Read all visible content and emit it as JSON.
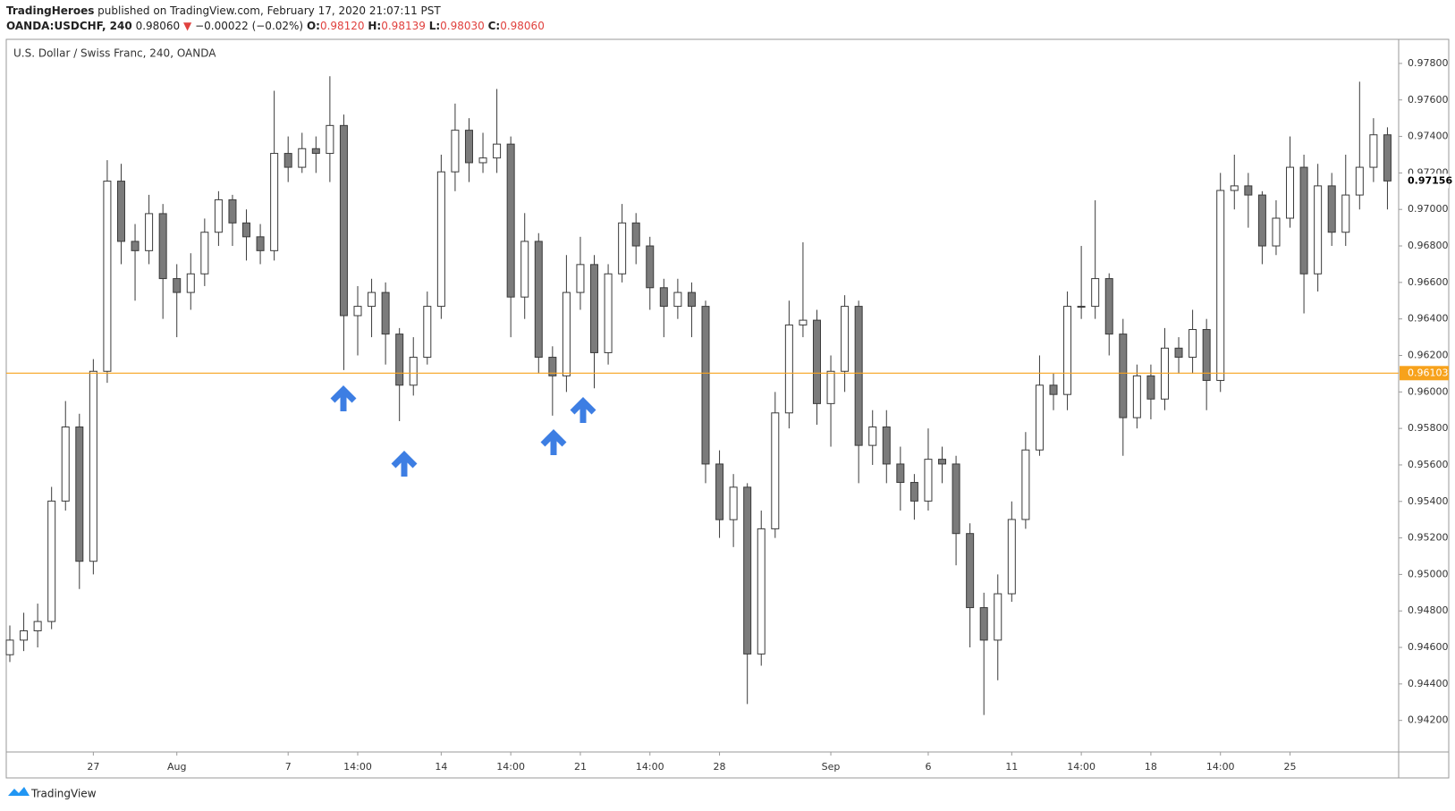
{
  "header": {
    "publisher": "TradingHeroes",
    "published": "published on TradingView.com, February 17, 2020 21:07:11 PST",
    "symbol": "OANDA:USDCHF, 240",
    "last": "0.98060",
    "change": "−0.00022 (−0.02%)",
    "o_label": "O:",
    "open": "0.98120",
    "h_label": "H:",
    "high": "0.98139",
    "l_label": "L:",
    "low": "0.98030",
    "c_label": "C:",
    "close": "0.98060"
  },
  "footer": {
    "brand": "TradingView"
  },
  "chart_data": {
    "type": "candlestick",
    "title": "U.S. Dollar / Swiss Franc, 240, OANDA",
    "up_color": "#ffffff",
    "down_color": "#7b7b7b",
    "edge_color": "#3a3a3a",
    "categories": [
      null,
      null,
      null,
      null,
      null,
      null,
      "27",
      null,
      null,
      null,
      null,
      null,
      "Aug",
      null,
      null,
      null,
      null,
      null,
      null,
      null,
      "7",
      null,
      null,
      null,
      null,
      "14:00",
      null,
      null,
      null,
      null,
      null,
      "14",
      null,
      null,
      null,
      null,
      "14:00",
      null,
      null,
      null,
      null,
      "21",
      null,
      null,
      null,
      null,
      "14:00",
      null,
      null,
      null,
      null,
      "28",
      null,
      null,
      null,
      null,
      null,
      null,
      null,
      "Sep",
      null,
      null,
      null,
      null,
      null,
      null,
      "6",
      null,
      null,
      null,
      null,
      null,
      "11",
      null,
      null,
      null,
      null,
      "14:00",
      null,
      null,
      null,
      null,
      "18",
      null,
      null,
      null,
      null,
      "14:00",
      null,
      null,
      null,
      null,
      "25",
      null,
      null,
      null,
      null,
      null,
      null,
      null
    ],
    "open": [
      0.9456,
      0.9464,
      0.94691,
      0.94742,
      0.95402,
      0.95808,
      0.95072,
      0.96113,
      0.97155,
      0.96825,
      0.96774,
      0.96977,
      0.96621,
      0.96545,
      0.96647,
      0.96875,
      0.97053,
      0.96926,
      0.9685,
      0.96774,
      0.97307,
      0.97231,
      0.97333,
      0.97307,
      0.9746,
      0.96418,
      0.96469,
      0.96545,
      0.96317,
      0.96037,
      0.9619,
      0.96469,
      0.97206,
      0.97434,
      0.97256,
      0.97282,
      0.97358,
      0.9652,
      0.96825,
      0.9619,
      0.96088,
      0.96545,
      0.96698,
      0.96215,
      0.96647,
      0.96926,
      0.968,
      0.96571,
      0.96469,
      0.96545,
      0.96469,
      0.95605,
      0.953,
      0.95478,
      0.94564,
      0.9525,
      0.95885,
      0.96367,
      0.96393,
      0.95936,
      0.96113,
      0.96469,
      0.95707,
      0.95808,
      0.95605,
      0.95504,
      0.95402,
      0.95631,
      0.95605,
      0.95224,
      0.94818,
      0.9464,
      0.94894,
      0.95301,
      0.95682,
      0.96037,
      0.95986,
      0.96469,
      0.96469,
      0.96621,
      0.96317,
      0.95859,
      0.96088,
      0.95961,
      0.9624,
      0.9619,
      0.96342,
      0.96063,
      0.97104,
      0.97129,
      0.97079,
      0.968,
      0.96952,
      0.97231,
      0.96647,
      0.97129,
      0.96875,
      0.97079,
      0.97231,
      0.97409
    ],
    "high": [
      0.9472,
      0.9479,
      0.9484,
      0.9548,
      0.9595,
      0.9588,
      0.9618,
      0.9727,
      0.9725,
      0.9692,
      0.9708,
      0.9703,
      0.967,
      0.9676,
      0.9695,
      0.971,
      0.9708,
      0.97,
      0.9692,
      0.9765,
      0.974,
      0.9742,
      0.974,
      0.9773,
      0.9752,
      0.9658,
      0.9662,
      0.966,
      0.9635,
      0.963,
      0.9655,
      0.973,
      0.9758,
      0.975,
      0.9742,
      0.9766,
      0.974,
      0.9698,
      0.9687,
      0.9625,
      0.9675,
      0.9685,
      0.9675,
      0.967,
      0.9703,
      0.9698,
      0.9685,
      0.9662,
      0.9662,
      0.966,
      0.965,
      0.9568,
      0.9555,
      0.955,
      0.9535,
      0.96,
      0.965,
      0.9682,
      0.9645,
      0.962,
      0.9653,
      0.965,
      0.959,
      0.959,
      0.957,
      0.9555,
      0.958,
      0.957,
      0.9565,
      0.9528,
      0.949,
      0.95,
      0.954,
      0.9578,
      0.962,
      0.961,
      0.9655,
      0.968,
      0.9705,
      0.9665,
      0.964,
      0.9615,
      0.9615,
      0.9635,
      0.963,
      0.9645,
      0.964,
      0.972,
      0.973,
      0.972,
      0.971,
      0.9705,
      0.974,
      0.973,
      0.9725,
      0.972,
      0.973,
      0.977,
      0.975,
      0.9745
    ],
    "low": [
      0.9452,
      0.9458,
      0.946,
      0.947,
      0.9535,
      0.9492,
      0.95,
      0.9605,
      0.967,
      0.965,
      0.967,
      0.964,
      0.963,
      0.9645,
      0.9658,
      0.968,
      0.968,
      0.9672,
      0.967,
      0.9672,
      0.9715,
      0.972,
      0.972,
      0.9715,
      0.9612,
      0.962,
      0.963,
      0.9615,
      0.9584,
      0.9598,
      0.9615,
      0.964,
      0.971,
      0.9715,
      0.972,
      0.972,
      0.963,
      0.964,
      0.961,
      0.9587,
      0.96,
      0.9645,
      0.9602,
      0.9615,
      0.966,
      0.967,
      0.9645,
      0.963,
      0.964,
      0.963,
      0.955,
      0.952,
      0.9515,
      0.9429,
      0.945,
      0.952,
      0.958,
      0.963,
      0.9582,
      0.957,
      0.96,
      0.955,
      0.956,
      0.955,
      0.9535,
      0.953,
      0.9535,
      0.955,
      0.9505,
      0.946,
      0.9423,
      0.9442,
      0.9485,
      0.9525,
      0.9565,
      0.959,
      0.959,
      0.964,
      0.964,
      0.962,
      0.9565,
      0.958,
      0.9585,
      0.959,
      0.961,
      0.961,
      0.959,
      0.96,
      0.97,
      0.969,
      0.967,
      0.9675,
      0.969,
      0.9643,
      0.9655,
      0.968,
      0.968,
      0.97,
      0.9715,
      0.97
    ],
    "close": [
      0.9464,
      0.94691,
      0.94742,
      0.95402,
      0.95808,
      0.95072,
      0.96113,
      0.97155,
      0.96825,
      0.96774,
      0.96977,
      0.96621,
      0.96545,
      0.96647,
      0.96875,
      0.97053,
      0.96926,
      0.9685,
      0.96774,
      0.97307,
      0.97231,
      0.97333,
      0.97307,
      0.9746,
      0.96418,
      0.96469,
      0.96545,
      0.96317,
      0.96037,
      0.9619,
      0.96469,
      0.97206,
      0.97434,
      0.97256,
      0.97282,
      0.97358,
      0.9652,
      0.96825,
      0.9619,
      0.96088,
      0.96545,
      0.96698,
      0.96215,
      0.96647,
      0.96926,
      0.968,
      0.96571,
      0.96469,
      0.96545,
      0.96469,
      0.95605,
      0.953,
      0.95478,
      0.94564,
      0.9525,
      0.95885,
      0.96367,
      0.96393,
      0.95936,
      0.96113,
      0.96469,
      0.95707,
      0.95808,
      0.95605,
      0.95504,
      0.95402,
      0.95631,
      0.95605,
      0.95224,
      0.94818,
      0.9464,
      0.94894,
      0.95301,
      0.95682,
      0.96037,
      0.95986,
      0.96469,
      0.96469,
      0.96621,
      0.96317,
      0.95859,
      0.96088,
      0.95961,
      0.9624,
      0.9619,
      0.96342,
      0.96063,
      0.97104,
      0.97129,
      0.97079,
      0.968,
      0.96952,
      0.97231,
      0.96647,
      0.97129,
      0.96875,
      0.97079,
      0.97231,
      0.97409,
      0.97156
    ],
    "ylim": [
      0.94027,
      0.97932
    ],
    "yticks": [
      {
        "value": 0.942,
        "label": "0.94200"
      },
      {
        "value": 0.944,
        "label": "0.94400"
      },
      {
        "value": 0.946,
        "label": "0.94600"
      },
      {
        "value": 0.948,
        "label": "0.94800"
      },
      {
        "value": 0.95,
        "label": "0.95000"
      },
      {
        "value": 0.952,
        "label": "0.95200"
      },
      {
        "value": 0.954,
        "label": "0.95400"
      },
      {
        "value": 0.956,
        "label": "0.95600"
      },
      {
        "value": 0.958,
        "label": "0.95800"
      },
      {
        "value": 0.96,
        "label": "0.96000"
      },
      {
        "value": 0.962,
        "label": "0.96200"
      },
      {
        "value": 0.964,
        "label": "0.96400"
      },
      {
        "value": 0.966,
        "label": "0.96600"
      },
      {
        "value": 0.968,
        "label": "0.96800"
      },
      {
        "value": 0.97,
        "label": "0.97000"
      },
      {
        "value": 0.972,
        "label": "0.97200"
      },
      {
        "value": 0.974,
        "label": "0.97400"
      },
      {
        "value": 0.976,
        "label": "0.97600"
      },
      {
        "value": 0.978,
        "label": "0.97800"
      }
    ],
    "hline": {
      "value": 0.96103,
      "color": "#f7a21b"
    },
    "last_price": 0.97156,
    "grid": false
  }
}
